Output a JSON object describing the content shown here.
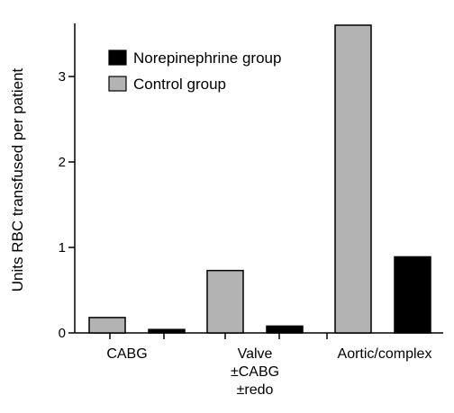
{
  "chart_data": {
    "type": "bar",
    "title": "",
    "xlabel": "",
    "ylabel": "Units RBC transfused per patient",
    "ylim": [
      0,
      3.6
    ],
    "yticks": [
      "0",
      "1",
      "2",
      "3"
    ],
    "grid": false,
    "legend_position": "top-left",
    "categories": [
      {
        "lines": [
          "CABG"
        ]
      },
      {
        "lines": [
          "Valve",
          "±CABG",
          "±redo"
        ]
      },
      {
        "lines": [
          "Aortic/complex"
        ]
      }
    ],
    "series": [
      {
        "name": "Control group",
        "color": "#b3b3b3",
        "values": [
          0.18,
          0.73,
          3.6
        ]
      },
      {
        "name": "Norepinephrine group",
        "color": "#000000",
        "values": [
          0.04,
          0.08,
          0.89
        ]
      }
    ],
    "legend_order": [
      "Norepinephrine group",
      "Control group"
    ]
  }
}
